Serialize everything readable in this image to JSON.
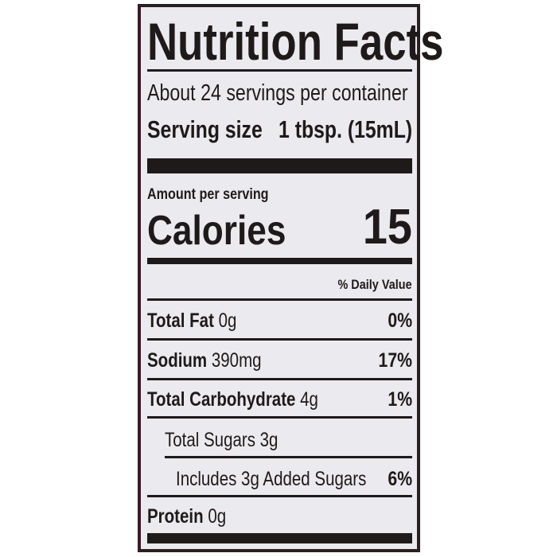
{
  "title": "Nutrition Facts",
  "servings_per_container": "About 24 servings per container",
  "serving_size": {
    "label": "Serving size",
    "value": "1 tbsp. (15mL)"
  },
  "amount_per_serving": "Amount per serving",
  "calories": {
    "label": "Calories",
    "value": "15"
  },
  "daily_value_header": "% Daily Value",
  "nutrients": [
    {
      "name": "Total Fat",
      "amount": "0g",
      "dv": "0%"
    },
    {
      "name": "Sodium",
      "amount": "390mg",
      "dv": "17%"
    },
    {
      "name": "Total Carbohydrate",
      "amount": "4g",
      "dv": "1%"
    },
    {
      "name": "Total Sugars 3g",
      "amount": "",
      "dv": ""
    },
    {
      "name": "Includes 3g Added Sugars",
      "amount": "",
      "dv": "6%"
    },
    {
      "name": "Protein",
      "amount": "0g",
      "dv": ""
    }
  ]
}
